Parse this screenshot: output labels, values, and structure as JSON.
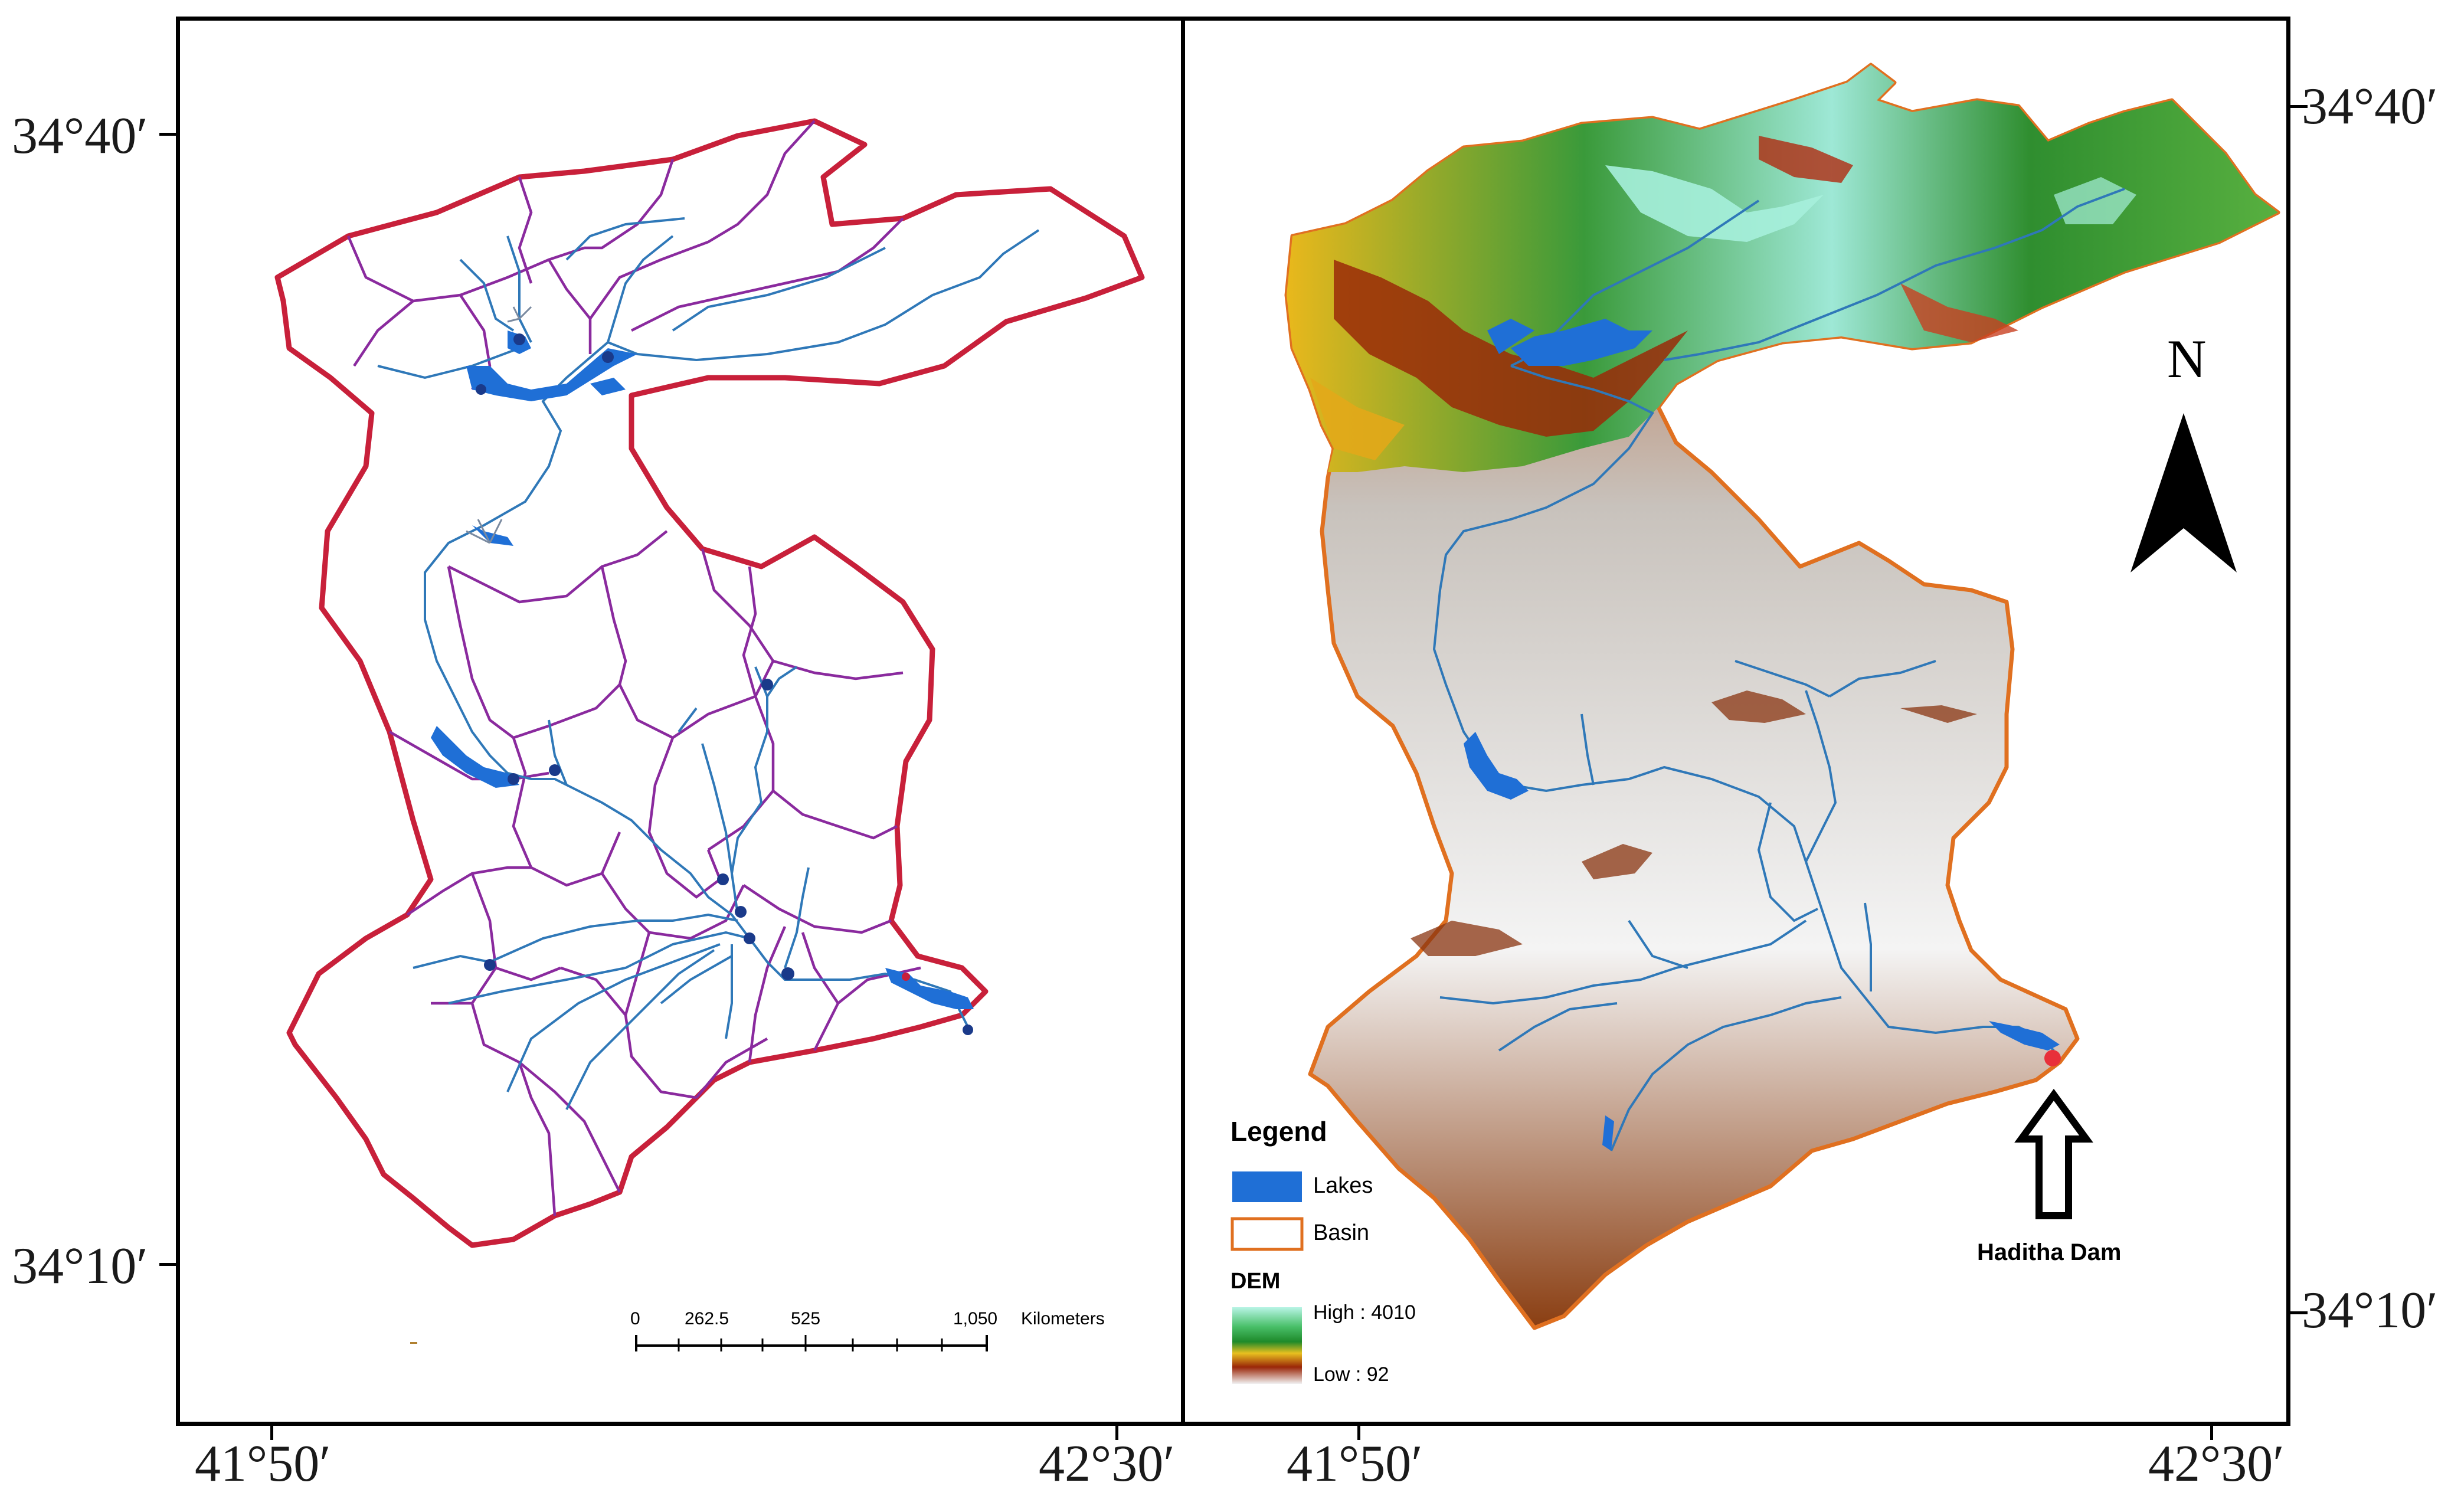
{
  "left_panel": {
    "lat_top": "34°40′",
    "lat_bottom": "34°10′",
    "lon_left": "41°50′",
    "lon_right": "42°30′"
  },
  "right_panel": {
    "lat_top": "34°40′",
    "lat_bottom": "34°10′",
    "lon_left": "41°50′",
    "lon_right": "42°30′",
    "north_label": "N",
    "dam_label": "Haditha Dam"
  },
  "scale_bar": {
    "ticks": [
      "0",
      "262.5",
      "525",
      "1,050"
    ],
    "unit": "Kilometers"
  },
  "legend": {
    "title": "Legend",
    "lakes": "Lakes",
    "basin": "Basin",
    "dem_title": "DEM",
    "dem_high": "High : 4010",
    "dem_low": "Low : 92"
  },
  "colors": {
    "basin_outline_left": "#c8203a",
    "subbasin": "#8a2a9e",
    "stream": "#2f78b8",
    "lake": "#1f6fd6",
    "basin_outline_right": "#e07020",
    "dem_high": "#a8f0e0",
    "dem_mid": "#1e8a2a",
    "dem_low": "#7a2a08",
    "dam_marker": "#e8303a"
  }
}
